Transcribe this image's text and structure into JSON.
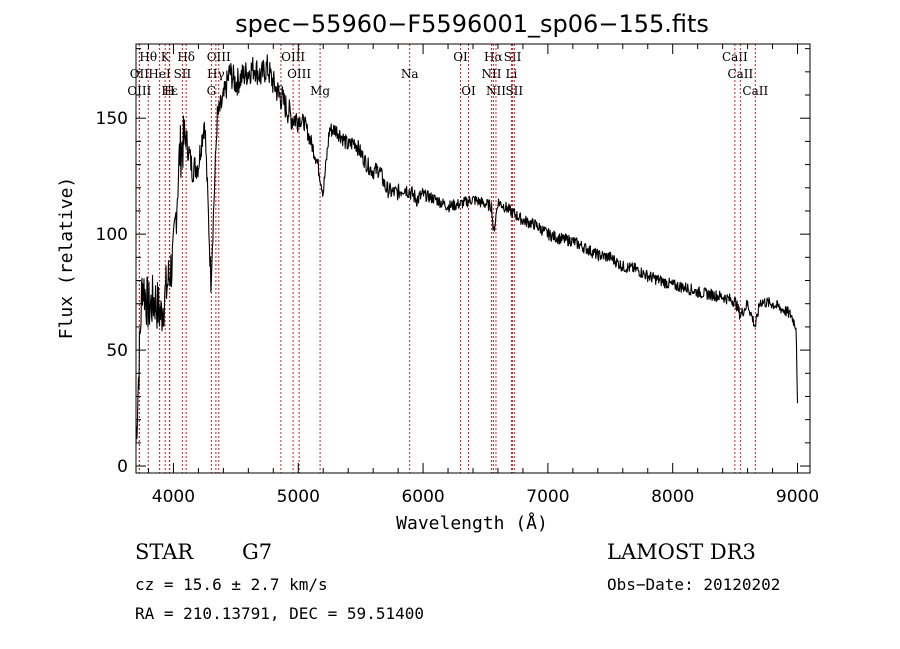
{
  "chart_data": {
    "type": "line",
    "title": "spec−55960−F5596001_sp06−155.fits",
    "xlabel": "Wavelength (Å)",
    "ylabel": "Flux (relative)",
    "xlim": [
      3700,
      9100
    ],
    "ylim": [
      -3,
      182
    ],
    "x_ticks": [
      4000,
      5000,
      6000,
      7000,
      8000,
      9000
    ],
    "y_ticks": [
      0,
      50,
      100,
      150
    ],
    "series": [
      {
        "name": "flux",
        "x": [
          3700,
          3750,
          3800,
          3850,
          3900,
          3950,
          4000,
          4050,
          4100,
          4150,
          4200,
          4250,
          4300,
          4350,
          4400,
          4450,
          4500,
          4550,
          4600,
          4650,
          4700,
          4750,
          4800,
          4850,
          4900,
          4950,
          5000,
          5050,
          5100,
          5150,
          5200,
          5250,
          5300,
          5350,
          5400,
          5450,
          5500,
          5550,
          5600,
          5650,
          5700,
          5750,
          5800,
          5850,
          5900,
          5950,
          6000,
          6100,
          6200,
          6300,
          6400,
          6500,
          6550,
          6563,
          6600,
          6700,
          6800,
          6900,
          7000,
          7100,
          7200,
          7300,
          7400,
          7500,
          7600,
          7700,
          7800,
          7900,
          8000,
          8100,
          8200,
          8300,
          8400,
          8500,
          8542,
          8600,
          8662,
          8700,
          8800,
          8900,
          8950,
          8990,
          9000
        ],
        "y": [
          10,
          80,
          68,
          72,
          65,
          78,
          90,
          135,
          142,
          128,
          130,
          150,
          80,
          150,
          158,
          170,
          165,
          168,
          170,
          172,
          168,
          172,
          165,
          160,
          155,
          150,
          150,
          148,
          140,
          132,
          118,
          145,
          145,
          142,
          138,
          140,
          135,
          130,
          127,
          128,
          120,
          118,
          118,
          120,
          118,
          115,
          117,
          115,
          112,
          113,
          115,
          113,
          112,
          100,
          114,
          110,
          106,
          104,
          100,
          98,
          97,
          94,
          91,
          90,
          86,
          85,
          82,
          80,
          78,
          77,
          75,
          74,
          73,
          71,
          65,
          70,
          60,
          71,
          70,
          67,
          65,
          60,
          25
        ]
      }
    ],
    "spectral_lines": [
      {
        "label": "Hθ",
        "wl": 3798,
        "row": 1
      },
      {
        "label": "K",
        "wl": 3934,
        "row": 1
      },
      {
        "label": "Hδ",
        "wl": 4102,
        "row": 1
      },
      {
        "label": "OIII",
        "wl": 4363,
        "row": 1
      },
      {
        "label": "OIII",
        "wl": 4959,
        "row": 1
      },
      {
        "label": "OI",
        "wl": 6300,
        "row": 1
      },
      {
        "label": "Hα",
        "wl": 6563,
        "row": 1
      },
      {
        "label": "SII",
        "wl": 6717,
        "row": 1
      },
      {
        "label": "CaII",
        "wl": 8498,
        "row": 1
      },
      {
        "label": "OII",
        "wl": 3727,
        "row": 2
      },
      {
        "label": "HeI",
        "wl": 3889,
        "row": 2
      },
      {
        "label": "SII",
        "wl": 4072,
        "row": 2
      },
      {
        "label": "Hγ",
        "wl": 4340,
        "row": 2
      },
      {
        "label": "OIII",
        "wl": 5007,
        "row": 2
      },
      {
        "label": "Na",
        "wl": 5893,
        "row": 2
      },
      {
        "label": "NII",
        "wl": 6548,
        "row": 2
      },
      {
        "label": "Li",
        "wl": 6708,
        "row": 2
      },
      {
        "label": "CaII",
        "wl": 8542,
        "row": 2
      },
      {
        "label": "OIII",
        "wl": 3727,
        "row": 3
      },
      {
        "label": "Hε",
        "wl": 3970,
        "row": 3
      },
      {
        "label": "H",
        "wl": 3968,
        "row": 3
      },
      {
        "label": "G",
        "wl": 4304,
        "row": 3
      },
      {
        "label": "β",
        "wl": 4861,
        "row": 3
      },
      {
        "label": "Mg",
        "wl": 5175,
        "row": 3
      },
      {
        "label": "OI",
        "wl": 6364,
        "row": 3
      },
      {
        "label": "NII",
        "wl": 6584,
        "row": 3
      },
      {
        "label": "SII",
        "wl": 6731,
        "row": 3
      },
      {
        "label": "CaII",
        "wl": 8662,
        "row": 3
      }
    ],
    "line_color": "#cc2222",
    "plot_color": "#000000"
  },
  "info": {
    "object_class": "STAR",
    "subclass": "G7",
    "survey": "LAMOST DR3",
    "cz": "cz = 15.6 ± 2.7 km/s",
    "obs_date": "Obs−Date: 20120202",
    "radec": "RA = 210.13791, DEC =  59.51400"
  }
}
